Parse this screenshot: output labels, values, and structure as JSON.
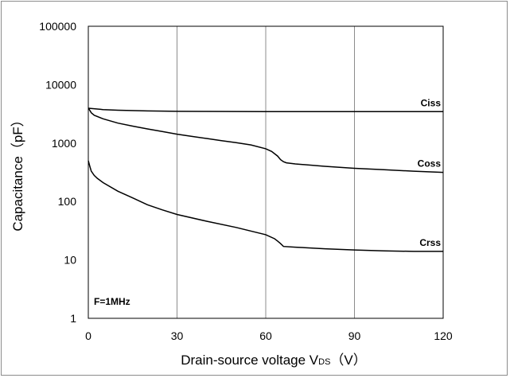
{
  "chart_data": {
    "type": "line",
    "title": "",
    "xlabel": "Drain-source voltage V",
    "xlabel_subscript": "DS",
    "xlabel_unit": "（V）",
    "ylabel": "Capacitance（pF）",
    "xlim": [
      0,
      120
    ],
    "ylim": [
      1,
      100000
    ],
    "y_scale": "log",
    "grid": "vertical",
    "x_ticks": [
      "0",
      "30",
      "60",
      "90",
      "120"
    ],
    "y_ticks": [
      "1",
      "10",
      "100",
      "1000",
      "10000",
      "100000"
    ],
    "annotation": "F=1MHz",
    "series": [
      {
        "name": "Ciss",
        "x": [
          0,
          5,
          10,
          20,
          30,
          40,
          60,
          80,
          100,
          120
        ],
        "y": [
          3950,
          3750,
          3650,
          3550,
          3500,
          3480,
          3460,
          3450,
          3450,
          3450
        ]
      },
      {
        "name": "Coss",
        "x": [
          0,
          1,
          2,
          5,
          10,
          15,
          20,
          25,
          30,
          35,
          40,
          45,
          50,
          55,
          60,
          62,
          64,
          65,
          66,
          67,
          70,
          80,
          90,
          100,
          110,
          120
        ],
        "y": [
          4000,
          3300,
          3000,
          2600,
          2200,
          1950,
          1750,
          1580,
          1420,
          1300,
          1200,
          1100,
          1020,
          930,
          800,
          720,
          600,
          520,
          480,
          460,
          440,
          400,
          370,
          350,
          330,
          315
        ]
      },
      {
        "name": "Crss",
        "x": [
          0,
          0.5,
          1,
          2,
          3,
          5,
          10,
          15,
          20,
          25,
          30,
          40,
          50,
          60,
          63,
          64,
          65,
          66,
          70,
          80,
          90,
          100,
          110,
          120
        ],
        "y": [
          500,
          400,
          330,
          280,
          250,
          210,
          150,
          115,
          88,
          72,
          60,
          46,
          36,
          27,
          23,
          21,
          19,
          17,
          16.5,
          15.5,
          14.8,
          14.3,
          14,
          14
        ]
      }
    ]
  }
}
